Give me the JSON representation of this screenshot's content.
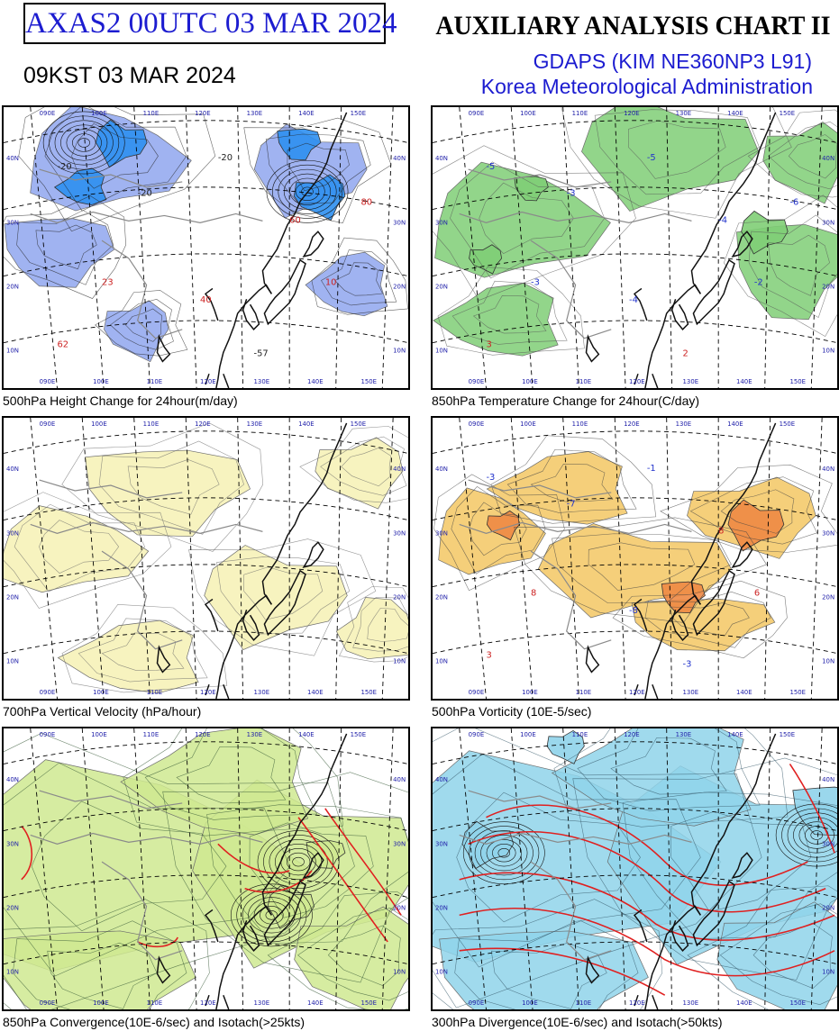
{
  "header": {
    "id_label": "AXAS2  00UTC 03 MAR 2024",
    "chart_title": "AUXILIARY ANALYSIS CHART II",
    "local_time": "09KST 03 MAR 2024",
    "model": "GDAPS (KIM NE360NP3 L91)",
    "agency": "Korea Meteorological Administration"
  },
  "panels": [
    {
      "id": "p1",
      "caption": "500hPa Height Change for 24hour(m/day)",
      "labels": [
        "-20",
        "-20",
        "-20",
        "60",
        "23",
        "40",
        "10",
        "-57",
        "62",
        "80"
      ]
    },
    {
      "id": "p2",
      "caption": "850hPa Temperature Change for 24hour(C/day)",
      "labels": [
        "-5",
        "-3",
        "-5",
        "-4",
        "-3",
        "-4",
        "-2",
        "2",
        "3",
        "-6"
      ]
    },
    {
      "id": "p3",
      "caption": "700hPa Vertical Velocity (hPa/hour)",
      "labels": []
    },
    {
      "id": "p4",
      "caption": "500hPa Vorticity (10E-5/sec)",
      "labels": [
        "-3",
        "-7",
        "-1",
        "8",
        "8",
        "-8",
        "6",
        "-3",
        "3"
      ]
    },
    {
      "id": "p5",
      "caption": "850hPa Convergence(10E-6/sec) and Isotach(>25kts)",
      "labels": []
    },
    {
      "id": "p6",
      "caption": "300hPa Divergence(10E-6/sec) and Isotach(>50kts)",
      "labels": []
    }
  ],
  "map_grid": {
    "lon_labels": [
      "090E",
      "100E",
      "110E",
      "120E",
      "130E",
      "140E",
      "150E"
    ],
    "lat_labels": [
      "40N",
      "30N",
      "20N",
      "10N"
    ]
  },
  "colors": {
    "title_blue": "#1c1cd0",
    "height_fall": "#8fa6ee",
    "height_fall_core": "#2e8ff0",
    "temp_fall": "#7fce75",
    "vorticity": "#f3c763",
    "vorticity_core": "#ee8844",
    "vertical_velocity": "#f6f1b4",
    "convergence": "#cfe990",
    "divergence": "#8fd3ea",
    "isotach": "#e02020",
    "coast": "#111111",
    "border": "#8a8a8a"
  }
}
